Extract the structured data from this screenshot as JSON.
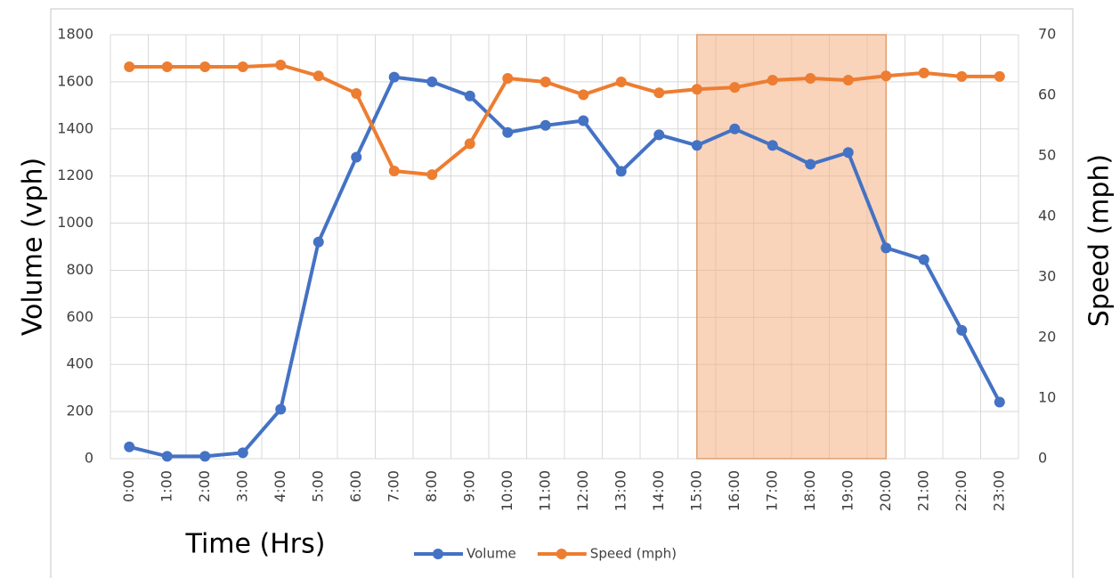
{
  "chart_data": {
    "type": "line",
    "x_label": "Time (Hrs)",
    "y_label": "Volume (vph)",
    "y2_label": "Speed (mph)",
    "categories": [
      "0:00",
      "1:00",
      "2:00",
      "3:00",
      "4:00",
      "5:00",
      "6:00",
      "7:00",
      "8:00",
      "9:00",
      "10:00",
      "11:00",
      "12:00",
      "13:00",
      "14:00",
      "15:00",
      "16:00",
      "17:00",
      "18:00",
      "19:00",
      "20:00",
      "21:00",
      "22:00",
      "23:00"
    ],
    "series": [
      {
        "name": "Volume",
        "color": "#4472c4",
        "values": [
          50,
          10,
          10,
          25,
          210,
          920,
          1280,
          1620,
          1600,
          1540,
          1385,
          1415,
          1435,
          1220,
          1375,
          1330,
          1400,
          1330,
          1250,
          1300,
          895,
          845,
          545,
          240
        ]
      },
      {
        "name": "Speed (mph)",
        "color": "#ed7d31",
        "axis": "y2",
        "values": [
          64.7,
          64.7,
          64.7,
          64.7,
          65,
          63.2,
          60.3,
          47.5,
          46.9,
          52,
          62.8,
          62.2,
          60.1,
          62.2,
          60.4,
          61,
          61.3,
          62.5,
          62.8,
          62.5,
          63.2,
          63.7,
          63.1,
          63.1
        ]
      }
    ],
    "ylim": [
      0,
      1800
    ],
    "yticks": [
      0,
      200,
      400,
      600,
      800,
      1000,
      1200,
      1400,
      1600,
      1800
    ],
    "y2lim": [
      0,
      70
    ],
    "y2ticks": [
      0,
      10,
      20,
      30,
      40,
      50,
      60,
      70
    ],
    "grid": true,
    "legend": "bottom",
    "shade": {
      "from": "15:00",
      "to": "20:00",
      "color": "#f4b183"
    }
  }
}
